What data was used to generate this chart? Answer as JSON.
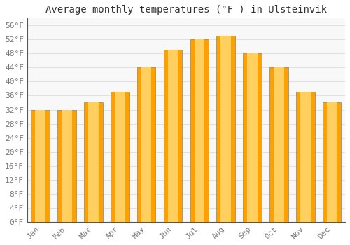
{
  "title": "Average monthly temperatures (°F ) in Ulsteinvik",
  "months": [
    "Jan",
    "Feb",
    "Mar",
    "Apr",
    "May",
    "Jun",
    "Jul",
    "Aug",
    "Sep",
    "Oct",
    "Nov",
    "Dec"
  ],
  "values": [
    32,
    32,
    34,
    37,
    44,
    49,
    52,
    53,
    48,
    44,
    37,
    34
  ],
  "bar_color_center": "#FFD060",
  "bar_color_edge": "#FFA000",
  "bar_edge_color": "#888866",
  "background_color": "#FFFFFF",
  "plot_bg_color": "#F8F8F8",
  "grid_color": "#DDDDDD",
  "ylim": [
    0,
    58
  ],
  "yticks": [
    0,
    4,
    8,
    12,
    16,
    20,
    24,
    28,
    32,
    36,
    40,
    44,
    48,
    52,
    56
  ],
  "title_fontsize": 10,
  "tick_fontsize": 8,
  "font_family": "monospace",
  "bar_width": 0.7
}
